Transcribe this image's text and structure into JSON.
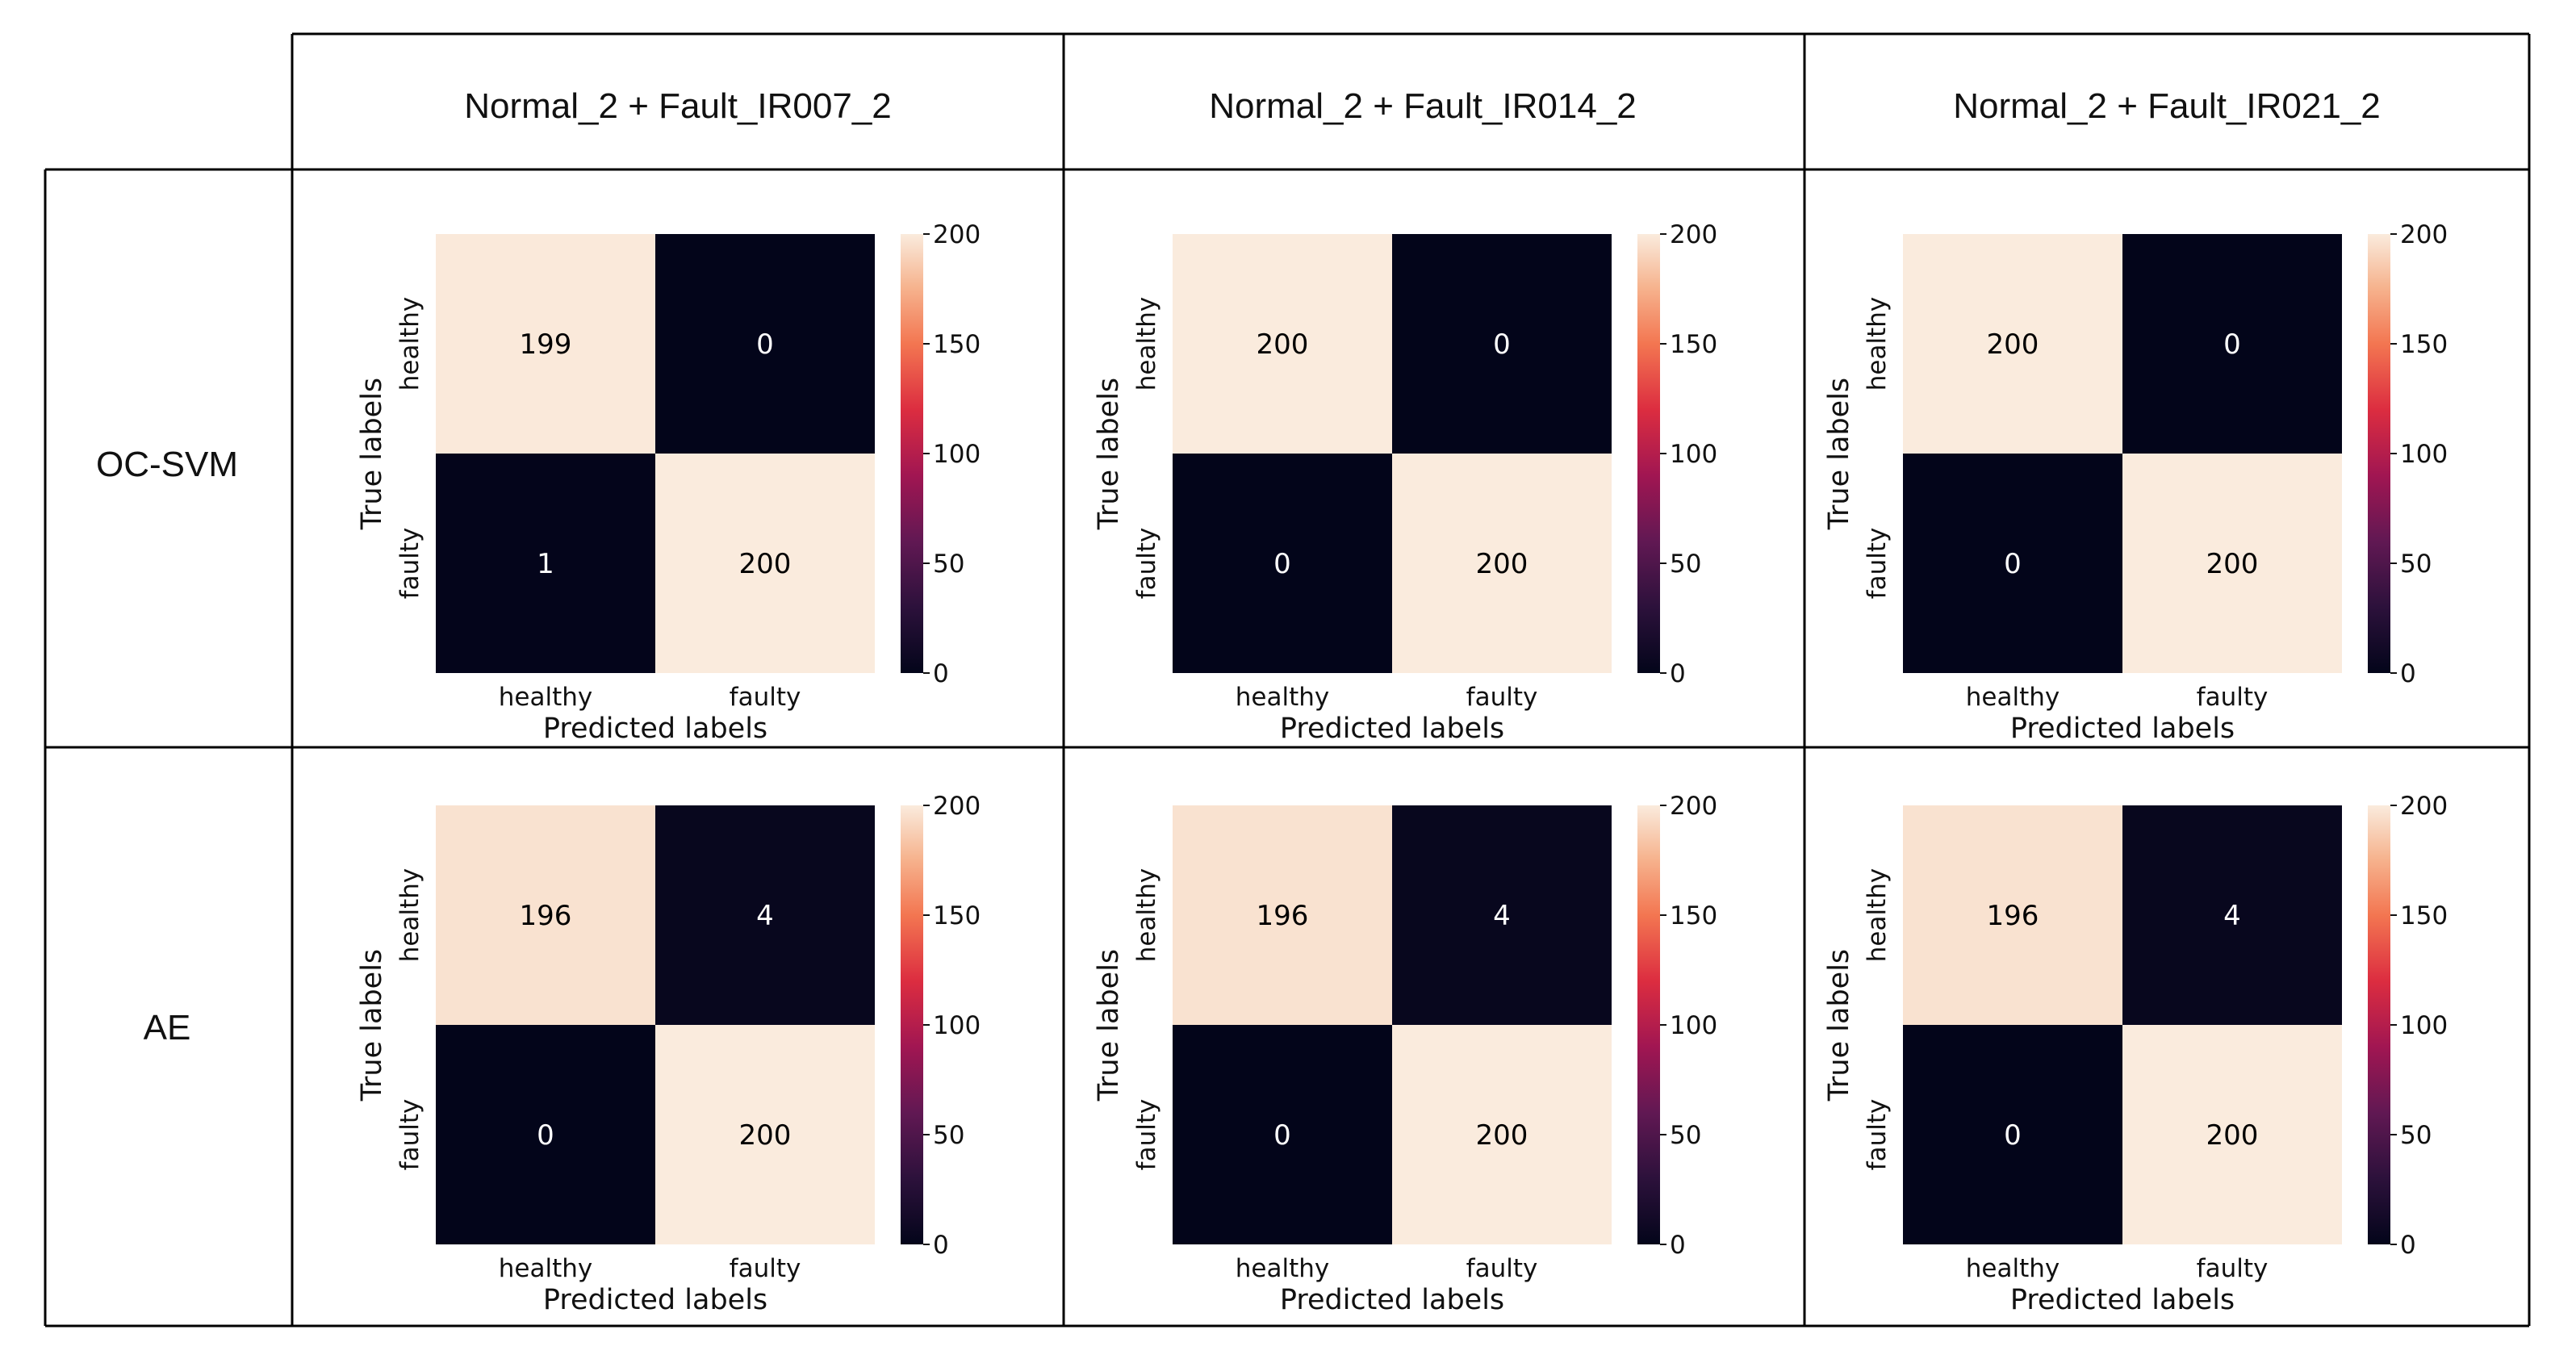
{
  "column_headers": [
    "Normal_2 + Fault_IR007_2",
    "Normal_2 + Fault_IR014_2",
    "Normal_2 + Fault_IR021_2"
  ],
  "row_headers": [
    "OC-SVM",
    "AE"
  ],
  "colors": {
    "low": "#03051a",
    "high": "#faebdd",
    "grid_line": "#000000",
    "text_on_dark": "#ffffff",
    "text_on_light": "#000000"
  },
  "chart_data": [
    {
      "type": "heatmap",
      "model": "OC-SVM",
      "dataset": "Normal_2 + Fault_IR007_2",
      "x_categories": [
        "healthy",
        "faulty"
      ],
      "y_categories": [
        "healthy",
        "faulty"
      ],
      "values": [
        [
          199,
          0
        ],
        [
          1,
          200
        ]
      ],
      "xlabel": "Predicted labels",
      "ylabel": "True labels",
      "colorbar_range": [
        0,
        200
      ],
      "colorbar_ticks": [
        0,
        50,
        100,
        150,
        200
      ]
    },
    {
      "type": "heatmap",
      "model": "OC-SVM",
      "dataset": "Normal_2 + Fault_IR014_2",
      "x_categories": [
        "healthy",
        "faulty"
      ],
      "y_categories": [
        "healthy",
        "faulty"
      ],
      "values": [
        [
          200,
          0
        ],
        [
          0,
          200
        ]
      ],
      "xlabel": "Predicted labels",
      "ylabel": "True labels",
      "colorbar_range": [
        0,
        200
      ],
      "colorbar_ticks": [
        0,
        50,
        100,
        150,
        200
      ]
    },
    {
      "type": "heatmap",
      "model": "OC-SVM",
      "dataset": "Normal_2 + Fault_IR021_2",
      "x_categories": [
        "healthy",
        "faulty"
      ],
      "y_categories": [
        "healthy",
        "faulty"
      ],
      "values": [
        [
          200,
          0
        ],
        [
          0,
          200
        ]
      ],
      "xlabel": "Predicted labels",
      "ylabel": "True labels",
      "colorbar_range": [
        0,
        200
      ],
      "colorbar_ticks": [
        0,
        50,
        100,
        150,
        200
      ]
    },
    {
      "type": "heatmap",
      "model": "AE",
      "dataset": "Normal_2 + Fault_IR007_2",
      "x_categories": [
        "healthy",
        "faulty"
      ],
      "y_categories": [
        "healthy",
        "faulty"
      ],
      "values": [
        [
          196,
          4
        ],
        [
          0,
          200
        ]
      ],
      "xlabel": "Predicted labels",
      "ylabel": "True labels",
      "colorbar_range": [
        0,
        200
      ],
      "colorbar_ticks": [
        0,
        50,
        100,
        150,
        200
      ]
    },
    {
      "type": "heatmap",
      "model": "AE",
      "dataset": "Normal_2 + Fault_IR014_2",
      "x_categories": [
        "healthy",
        "faulty"
      ],
      "y_categories": [
        "healthy",
        "faulty"
      ],
      "values": [
        [
          196,
          4
        ],
        [
          0,
          200
        ]
      ],
      "xlabel": "Predicted labels",
      "ylabel": "True labels",
      "colorbar_range": [
        0,
        200
      ],
      "colorbar_ticks": [
        0,
        50,
        100,
        150,
        200
      ]
    },
    {
      "type": "heatmap",
      "model": "AE",
      "dataset": "Normal_2 + Fault_IR021_2",
      "x_categories": [
        "healthy",
        "faulty"
      ],
      "y_categories": [
        "healthy",
        "faulty"
      ],
      "values": [
        [
          196,
          4
        ],
        [
          0,
          200
        ]
      ],
      "xlabel": "Predicted labels",
      "ylabel": "True labels",
      "colorbar_range": [
        0,
        200
      ],
      "colorbar_ticks": [
        0,
        50,
        100,
        150,
        200
      ]
    }
  ]
}
